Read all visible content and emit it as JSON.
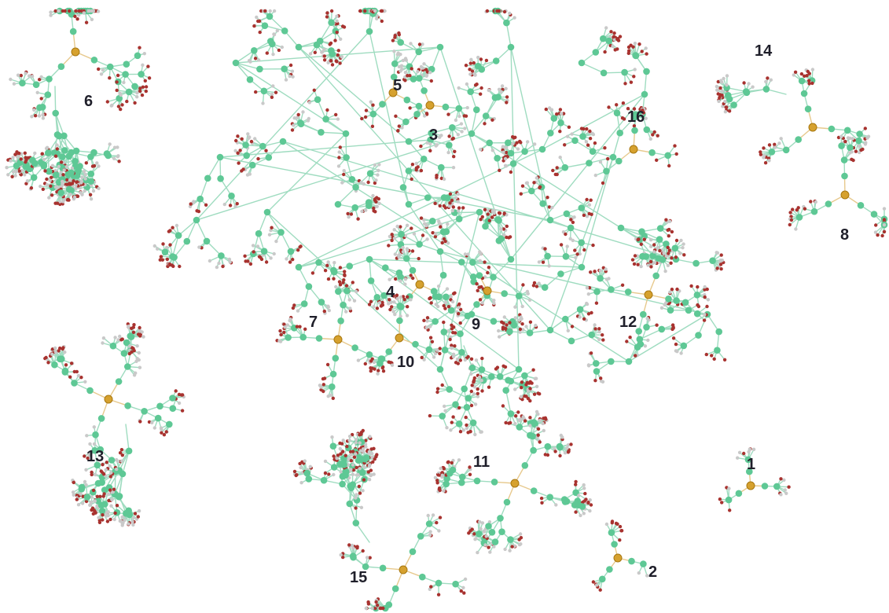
{
  "diagram": {
    "type": "network-graph",
    "colors": {
      "edge": "#9fdcc0",
      "hub_edge": "#e7c98d",
      "node": "#5ec895",
      "leaf_red": "#a8322f",
      "leaf_gray": "#c9c9c9",
      "hub": "#d6a12e",
      "label": "#1f1f2a",
      "background": "#ffffff"
    },
    "clusters": [
      {
        "id": "c1",
        "label": "1"
      },
      {
        "id": "c2",
        "label": "2"
      },
      {
        "id": "c3",
        "label": "3"
      },
      {
        "id": "c4",
        "label": "4"
      },
      {
        "id": "c5",
        "label": "5"
      },
      {
        "id": "c6",
        "label": "6"
      },
      {
        "id": "c7",
        "label": "7"
      },
      {
        "id": "c8",
        "label": "8"
      },
      {
        "id": "c9",
        "label": "9"
      },
      {
        "id": "c10",
        "label": "10"
      },
      {
        "id": "c11",
        "label": "11"
      },
      {
        "id": "c12",
        "label": "12"
      },
      {
        "id": "c13",
        "label": "13"
      },
      {
        "id": "c14",
        "label": "14"
      },
      {
        "id": "c15",
        "label": "15"
      },
      {
        "id": "c16",
        "label": "16"
      }
    ]
  }
}
